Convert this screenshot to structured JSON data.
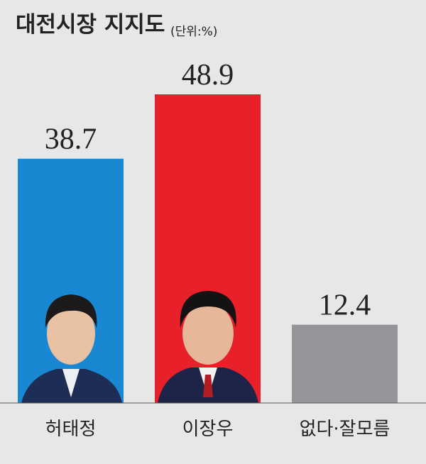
{
  "chart_data": {
    "type": "bar",
    "title": "대전시장 지지도",
    "subtitle": "(단위:%)",
    "categories": [
      "허태정",
      "이장우",
      "없다·잘모름"
    ],
    "values": [
      38.7,
      48.9,
      12.4
    ],
    "colors": [
      "#1a87d3",
      "#e8202a",
      "#939598"
    ]
  }
}
